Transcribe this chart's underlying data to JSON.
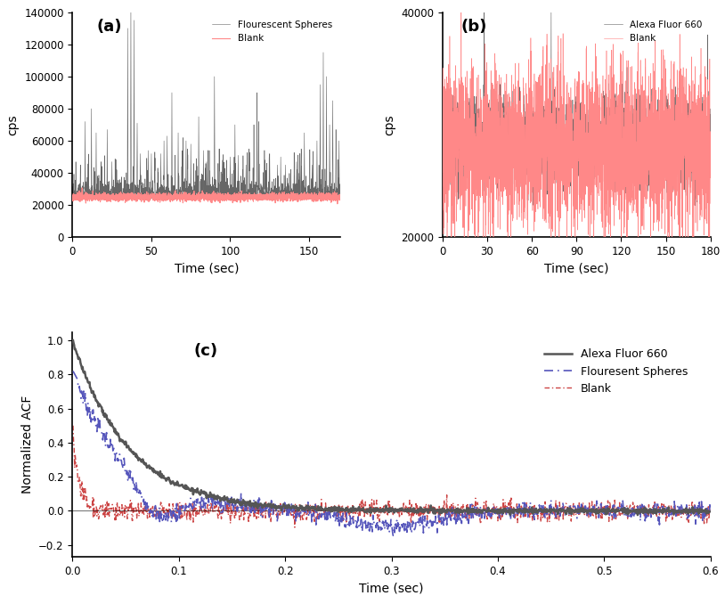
{
  "panel_a": {
    "label": "(a)",
    "xlim": [
      0,
      170
    ],
    "ylim": [
      0,
      140000
    ],
    "yticks": [
      0,
      20000,
      40000,
      60000,
      80000,
      100000,
      120000,
      140000
    ],
    "xticks": [
      0,
      50,
      100,
      150
    ],
    "xlabel": "Time (sec)",
    "ylabel": "cps",
    "legend_spheres": "Flourescent Spheres",
    "legend_blank": "Blank",
    "color_spheres": "#666666",
    "color_blank": "#ff8888"
  },
  "panel_b": {
    "label": "(b)",
    "xlim": [
      0,
      180
    ],
    "ylim": [
      20000,
      40000
    ],
    "yticks": [
      20000,
      40000
    ],
    "xticks": [
      0,
      30,
      60,
      90,
      120,
      150,
      180
    ],
    "xlabel": "Time (sec)",
    "ylabel": "cps",
    "legend_alexa": "Alexa Fluor 660",
    "legend_blank": "Blank",
    "color_alexa": "#666666",
    "color_blank": "#ff8888"
  },
  "panel_c": {
    "label": "(c)",
    "xlim": [
      0.0,
      0.6
    ],
    "ylim": [
      -0.27,
      1.05
    ],
    "yticks": [
      -0.2,
      0.0,
      0.2,
      0.4,
      0.6,
      0.8,
      1.0
    ],
    "xticks": [
      0.0,
      0.1,
      0.2,
      0.3,
      0.4,
      0.5,
      0.6
    ],
    "xlabel": "Time (sec)",
    "ylabel": "Normalized ACF",
    "legend_alexa": "Alexa Fluor 660",
    "legend_spheres": "Flouresent Spheres",
    "legend_blank": "Blank",
    "color_alexa": "#555555",
    "color_spheres": "#5555bb",
    "color_blank": "#cc4444"
  },
  "figure_bg": "#ffffff"
}
